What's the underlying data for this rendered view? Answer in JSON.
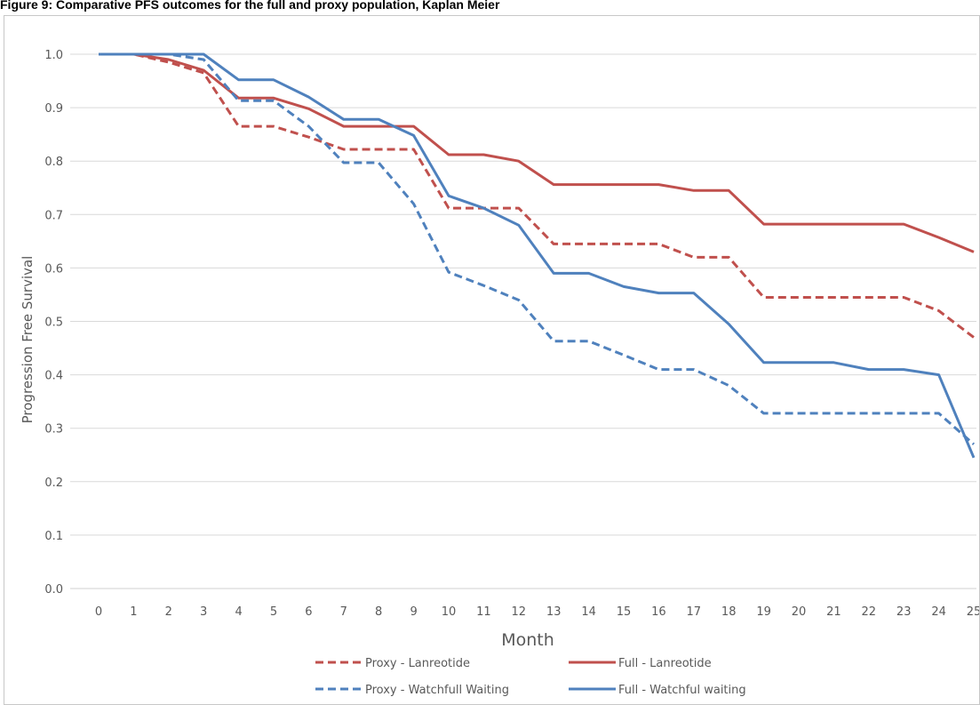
{
  "figure_title": "Figure 9:  Comparative PFS outcomes for the full and proxy population, Kaplan Meier",
  "chart_data": {
    "type": "line",
    "title": "",
    "xlabel": "Month",
    "ylabel": "Progression Free Survival",
    "x": [
      0,
      1,
      2,
      3,
      4,
      5,
      6,
      7,
      8,
      9,
      10,
      11,
      12,
      13,
      14,
      15,
      16,
      17,
      18,
      19,
      20,
      21,
      22,
      23,
      24,
      25
    ],
    "x_tick_labels": [
      "0",
      "1",
      "2",
      "3",
      "4",
      "5",
      "6",
      "7",
      "8",
      "9",
      "10",
      "11",
      "12",
      "13",
      "14",
      "15",
      "16",
      "17",
      "18",
      "19",
      "20",
      "21",
      "22",
      "23",
      "24",
      "25"
    ],
    "y_tick_labels": [
      "0.0",
      "0.1",
      "0.2",
      "0.3",
      "0.4",
      "0.5",
      "0.6",
      "0.7",
      "0.8",
      "0.9",
      "1.0"
    ],
    "ylim": [
      0,
      1.0
    ],
    "grid": "horizontal",
    "legend_position": "bottom",
    "series": [
      {
        "name": "Proxy - Lanreotide",
        "color": "#c0504d",
        "dash": true,
        "values": [
          1.0,
          1.0,
          0.985,
          0.965,
          0.865,
          0.865,
          0.845,
          0.822,
          0.822,
          0.822,
          0.712,
          0.712,
          0.712,
          0.645,
          0.645,
          0.645,
          0.645,
          0.62,
          0.62,
          0.545,
          0.545,
          0.545,
          0.545,
          0.545,
          0.52,
          0.47
        ]
      },
      {
        "name": "Full - Lanreotide",
        "color": "#c0504d",
        "dash": false,
        "values": [
          1.0,
          1.0,
          0.99,
          0.97,
          0.918,
          0.918,
          0.898,
          0.865,
          0.865,
          0.865,
          0.812,
          0.812,
          0.8,
          0.756,
          0.756,
          0.756,
          0.756,
          0.745,
          0.745,
          0.682,
          0.682,
          0.682,
          0.682,
          0.682,
          0.657,
          0.63
        ]
      },
      {
        "name": "Proxy - Watchfull Waiting",
        "color": "#4f81bd",
        "dash": true,
        "values": [
          1.0,
          1.0,
          1.0,
          0.99,
          0.913,
          0.913,
          0.865,
          0.797,
          0.797,
          0.72,
          0.592,
          0.567,
          0.54,
          0.463,
          0.463,
          0.437,
          0.41,
          0.41,
          0.38,
          0.328,
          0.328,
          0.328,
          0.328,
          0.328,
          0.328,
          0.27
        ]
      },
      {
        "name": "Full - Watchful waiting",
        "color": "#4f81bd",
        "dash": false,
        "values": [
          1.0,
          1.0,
          1.0,
          1.0,
          0.952,
          0.952,
          0.92,
          0.878,
          0.878,
          0.848,
          0.735,
          0.712,
          0.68,
          0.59,
          0.59,
          0.565,
          0.553,
          0.553,
          0.495,
          0.423,
          0.423,
          0.423,
          0.41,
          0.41,
          0.4,
          0.245
        ]
      }
    ]
  }
}
